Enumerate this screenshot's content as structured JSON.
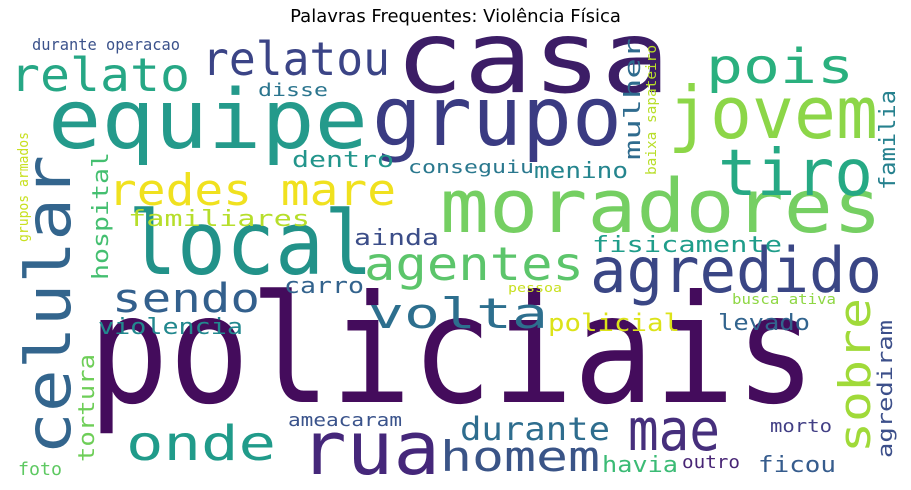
{
  "chart_data": {
    "type": "wordcloud",
    "title": "Palavras Frequentes: Violência Física",
    "words": [
      {
        "text": "policiais",
        "color": "#440c5c"
      },
      {
        "text": "casa",
        "color": "#3c1d66"
      },
      {
        "text": "equipe",
        "color": "#249a8b"
      },
      {
        "text": "grupo",
        "color": "#3a3b82"
      },
      {
        "text": "moradores",
        "color": "#75cf62"
      },
      {
        "text": "local",
        "color": "#229289"
      },
      {
        "text": "celular",
        "color": "#33658d"
      },
      {
        "text": "jovem",
        "color": "#8cd648"
      },
      {
        "text": "tiro",
        "color": "#26a984"
      },
      {
        "text": "agredido",
        "color": "#3a4685"
      },
      {
        "text": "rua",
        "color": "#45277a"
      },
      {
        "text": "mae",
        "color": "#462f7c"
      },
      {
        "text": "relato",
        "color": "#26a785"
      },
      {
        "text": "relatou",
        "color": "#3b4486"
      },
      {
        "text": "pois",
        "color": "#2ab07e"
      },
      {
        "text": "redes mare",
        "color": "#f0e11f"
      },
      {
        "text": "agentes",
        "color": "#5cc56b"
      },
      {
        "text": "sendo",
        "color": "#33608d"
      },
      {
        "text": "volta",
        "color": "#2d6f8e"
      },
      {
        "text": "onde",
        "color": "#209b8a"
      },
      {
        "text": "homem",
        "color": "#3a5487"
      },
      {
        "text": "sobre",
        "color": "#a0da39"
      },
      {
        "text": "durante",
        "color": "#2e6d8e"
      },
      {
        "text": "policial",
        "color": "#dce319"
      },
      {
        "text": "familiares",
        "color": "#b6de2b"
      },
      {
        "text": "dentro",
        "color": "#22958b"
      },
      {
        "text": "ainda",
        "color": "#3b4d88"
      },
      {
        "text": "carro",
        "color": "#33638d"
      },
      {
        "text": "violencia",
        "color": "#22888e"
      },
      {
        "text": "fisicamente",
        "color": "#1f9d8a"
      },
      {
        "text": "conseguiu",
        "color": "#2a788e"
      },
      {
        "text": "menino",
        "color": "#25858e"
      },
      {
        "text": "mulher",
        "color": "#2f6b8e"
      },
      {
        "text": "levado",
        "color": "#32648e"
      },
      {
        "text": "disse",
        "color": "#2b758e"
      },
      {
        "text": "hospital",
        "color": "#44bf70"
      },
      {
        "text": "tortura",
        "color": "#6ece58"
      },
      {
        "text": "ameacaram",
        "color": "#3a538b"
      },
      {
        "text": "morto",
        "color": "#423f85"
      },
      {
        "text": "havia",
        "color": "#3bbb75"
      },
      {
        "text": "outro",
        "color": "#482575"
      },
      {
        "text": "ficou",
        "color": "#365c8d"
      },
      {
        "text": "foto",
        "color": "#5ec962"
      },
      {
        "text": "familia",
        "color": "#26818e"
      },
      {
        "text": "agrediram",
        "color": "#3c4f8a"
      },
      {
        "text": "durante operacao",
        "color": "#3b528b"
      },
      {
        "text": "grupos armados",
        "color": "#c8e020"
      },
      {
        "text": "baixa sapateiro",
        "color": "#b8de29"
      },
      {
        "text": "busca ativa",
        "color": "#8fd744"
      },
      {
        "text": "pessoa",
        "color": "#c8e020"
      }
    ]
  }
}
